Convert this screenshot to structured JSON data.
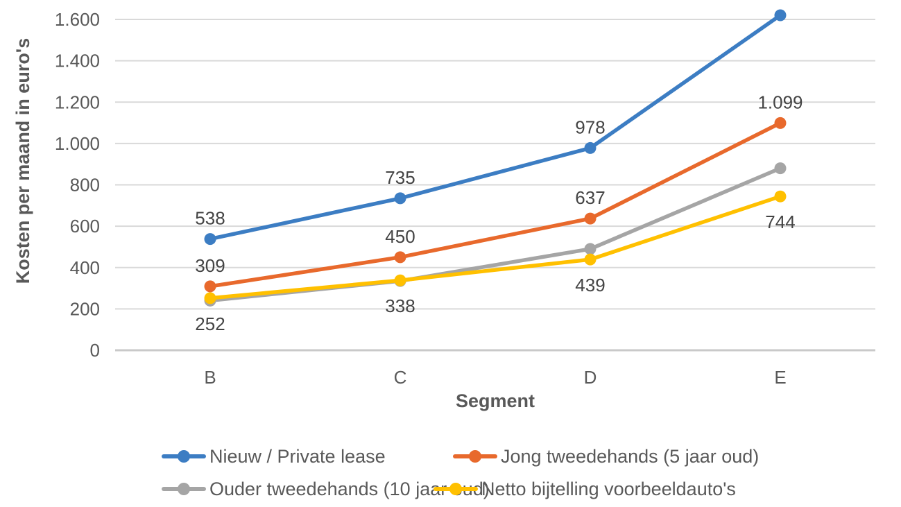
{
  "chart_data": {
    "type": "line",
    "title": "",
    "xlabel": "Segment",
    "ylabel": "Kosten per maand in euro's",
    "categories": [
      "B",
      "C",
      "D",
      "E"
    ],
    "y_ticks": [
      "0",
      "200",
      "400",
      "600",
      "800",
      "1.000",
      "1.200",
      "1.400",
      "1.600"
    ],
    "y_tick_values": [
      0,
      200,
      400,
      600,
      800,
      1000,
      1200,
      1400,
      1600
    ],
    "ylim": [
      0,
      1600
    ],
    "grid": true,
    "legend_position": "bottom",
    "series": [
      {
        "name": "Nieuw / Private lease",
        "color": "#3C7DC3",
        "values": [
          538,
          735,
          978,
          1620
        ],
        "data_labels": [
          "538",
          "735",
          "978",
          null
        ],
        "label_position": "above"
      },
      {
        "name": "Jong tweedehands (5 jaar oud)",
        "color": "#E8692C",
        "values": [
          309,
          450,
          637,
          1099
        ],
        "data_labels": [
          "309",
          "450",
          "637",
          "1.099"
        ],
        "label_position": "above"
      },
      {
        "name": "Ouder tweedehands (10 jaar oud)",
        "color": "#A5A5A5",
        "values": [
          240,
          335,
          490,
          880
        ],
        "data_labels": [
          null,
          null,
          null,
          null
        ],
        "label_position": "above"
      },
      {
        "name": "Netto bijtelling voorbeeldauto's",
        "color": "#FFC000",
        "values": [
          252,
          338,
          439,
          744
        ],
        "data_labels": [
          "252",
          "338",
          "439",
          "744"
        ],
        "label_position": "below"
      }
    ],
    "colors": {
      "background": "#FFFFFF",
      "gridline": "#D9D9D9",
      "axis_line": "#C9C9C9",
      "tick_label": "#595959",
      "axis_title": "#595959",
      "data_label": "#444444",
      "legend_text": "#595959"
    }
  }
}
